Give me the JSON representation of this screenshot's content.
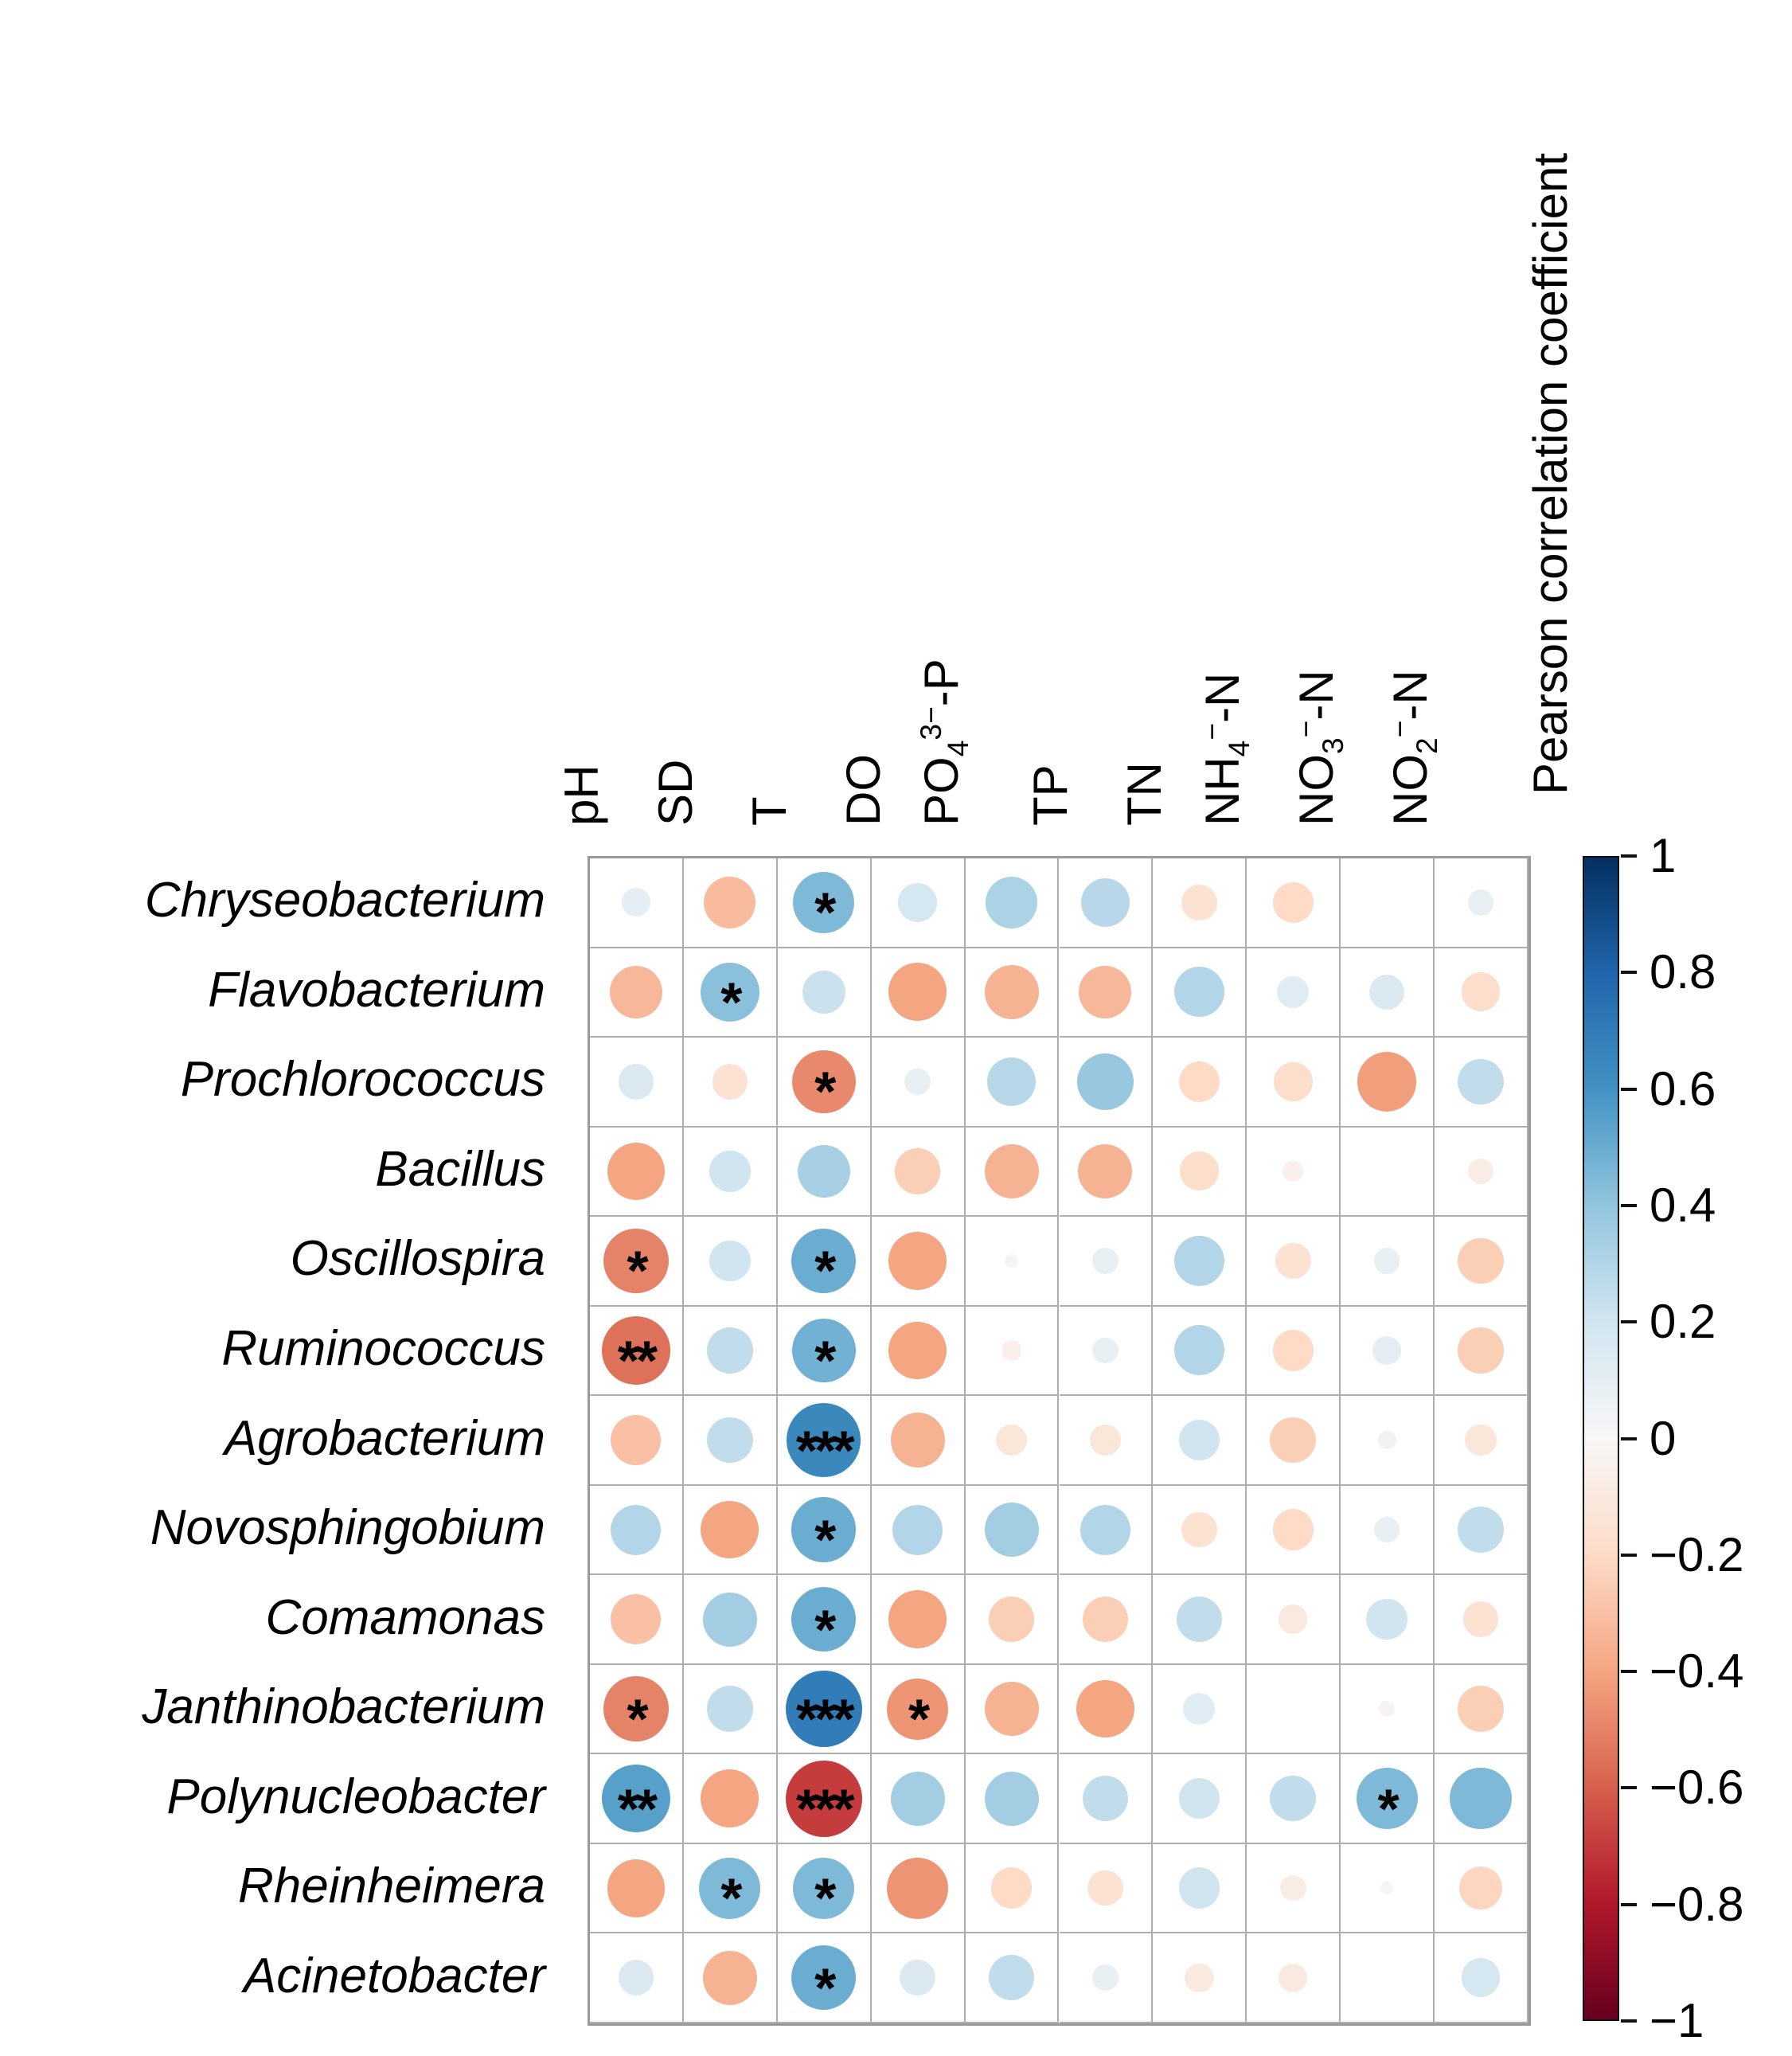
{
  "legend": {
    "title": "Pearson correlation coefficient",
    "ticks": [
      {
        "value": 1,
        "label": "1"
      },
      {
        "value": 0.8,
        "label": "0.8"
      },
      {
        "value": 0.6,
        "label": "0.6"
      },
      {
        "value": 0.4,
        "label": "0.4"
      },
      {
        "value": 0.2,
        "label": "0.2"
      },
      {
        "value": 0,
        "label": "0"
      },
      {
        "value": -0.2,
        "label": "−0.2"
      },
      {
        "value": -0.4,
        "label": "−0.4"
      },
      {
        "value": -0.6,
        "label": "−0.6"
      },
      {
        "value": -0.8,
        "label": "−0.8"
      },
      {
        "value": -1,
        "label": "−1"
      }
    ]
  },
  "colors": {
    "grid_line": "#aeaeae",
    "outer_border": "#9a9a9a",
    "colorbar_border": "#111111",
    "star_color": "#000000",
    "colormap_stops": [
      [
        -1.0,
        "#67001f"
      ],
      [
        -0.8,
        "#b2182b"
      ],
      [
        -0.6,
        "#d6604d"
      ],
      [
        -0.4,
        "#f4a582"
      ],
      [
        -0.2,
        "#fddbc7"
      ],
      [
        0.0,
        "#f7f7f7"
      ],
      [
        0.2,
        "#d1e5f0"
      ],
      [
        0.4,
        "#92c5de"
      ],
      [
        0.6,
        "#4393c3"
      ],
      [
        0.8,
        "#2166ac"
      ],
      [
        1.0,
        "#053061"
      ]
    ]
  },
  "chart_data": {
    "type": "heatmap",
    "subtype": "correlation-bubble-matrix",
    "legend_title": "Pearson correlation coefficient",
    "value_range": [
      -1,
      1
    ],
    "grid": true,
    "legend_position": "right",
    "columns": [
      {
        "label": "pH",
        "label_html": "pH"
      },
      {
        "label": "SD",
        "label_html": "SD"
      },
      {
        "label": "T",
        "label_html": "T"
      },
      {
        "label": "DO",
        "label_html": "DO"
      },
      {
        "label": "PO43−-P",
        "label_html": "PO<sub>4</sub><sup>3−</sup>-P"
      },
      {
        "label": "TP",
        "label_html": "TP"
      },
      {
        "label": "TN",
        "label_html": "TN"
      },
      {
        "label": "NH4−-N",
        "label_html": "NH<sub>4</sub><sup>−</sup>-N"
      },
      {
        "label": "NO3−-N",
        "label_html": "NO<sub>3</sub><sup>−</sup>-N"
      },
      {
        "label": "NO2−-N",
        "label_html": "NO<sub>2</sub><sup>−</sup>-N"
      }
    ],
    "rows": [
      "Chryseobacterium",
      "Flavobacterium",
      "Prochlorococcus",
      "Bacillus",
      "Oscillospira",
      "Ruminococcus",
      "Agrobacterium",
      "Novosphingobium",
      "Comamonas",
      "Janthinobacterium",
      "Polynucleobacter",
      "Rheinheimera",
      "Acinetobacter"
    ],
    "values": [
      [
        0.1,
        -0.32,
        0.45,
        0.18,
        0.32,
        0.28,
        -0.15,
        -0.2,
        0.0,
        0.08
      ],
      [
        -0.33,
        0.42,
        0.22,
        -0.4,
        -0.35,
        -0.33,
        0.3,
        0.12,
        0.15,
        -0.18
      ],
      [
        0.15,
        -0.15,
        -0.48,
        0.08,
        0.28,
        0.38,
        -0.2,
        -0.18,
        -0.42,
        0.25
      ],
      [
        -0.4,
        0.2,
        0.33,
        -0.25,
        -0.35,
        -0.35,
        -0.18,
        -0.05,
        0.0,
        -0.08
      ],
      [
        -0.5,
        0.2,
        0.5,
        -0.4,
        -0.02,
        0.08,
        0.3,
        -0.15,
        0.08,
        -0.25
      ],
      [
        -0.55,
        0.25,
        0.48,
        -0.4,
        -0.05,
        0.08,
        0.3,
        -0.2,
        0.1,
        -0.25
      ],
      [
        -0.3,
        0.25,
        0.65,
        -0.35,
        -0.12,
        -0.12,
        0.2,
        -0.25,
        0.04,
        -0.12
      ],
      [
        0.3,
        -0.4,
        0.5,
        0.3,
        0.35,
        0.3,
        -0.15,
        -0.2,
        0.08,
        0.25
      ],
      [
        -0.3,
        0.35,
        0.5,
        -0.4,
        -0.25,
        -0.25,
        0.25,
        -0.1,
        0.2,
        -0.15
      ],
      [
        -0.5,
        0.25,
        0.7,
        -0.45,
        -0.35,
        -0.4,
        0.12,
        0.0,
        -0.03,
        -0.25
      ],
      [
        0.55,
        -0.4,
        -0.7,
        0.35,
        0.35,
        0.25,
        0.2,
        0.25,
        0.45,
        0.45
      ],
      [
        -0.4,
        0.45,
        0.45,
        -0.45,
        -0.2,
        -0.15,
        0.2,
        -0.08,
        0.02,
        -0.22
      ],
      [
        0.15,
        -0.35,
        0.5,
        0.15,
        0.25,
        0.08,
        -0.1,
        -0.1,
        0.0,
        0.18
      ]
    ],
    "significance": [
      [
        "",
        "",
        "*",
        "",
        "",
        "",
        "",
        "",
        "",
        ""
      ],
      [
        "",
        "*",
        "",
        "",
        "",
        "",
        "",
        "",
        "",
        ""
      ],
      [
        "",
        "",
        "*",
        "",
        "",
        "",
        "",
        "",
        "",
        ""
      ],
      [
        "",
        "",
        "",
        "",
        "",
        "",
        "",
        "",
        "",
        ""
      ],
      [
        "*",
        "",
        "*",
        "",
        "",
        "",
        "",
        "",
        "",
        ""
      ],
      [
        "**",
        "",
        "*",
        "",
        "",
        "",
        "",
        "",
        "",
        ""
      ],
      [
        "",
        "",
        "***",
        "",
        "",
        "",
        "",
        "",
        "",
        ""
      ],
      [
        "",
        "",
        "*",
        "",
        "",
        "",
        "",
        "",
        "",
        ""
      ],
      [
        "",
        "",
        "*",
        "",
        "",
        "",
        "",
        "",
        "",
        ""
      ],
      [
        "*",
        "",
        "***",
        "*",
        "",
        "",
        "",
        "",
        "",
        ""
      ],
      [
        "**",
        "",
        "***",
        "",
        "",
        "",
        "",
        "",
        "*",
        ""
      ],
      [
        "",
        "*",
        "*",
        "",
        "",
        "",
        "",
        "",
        "",
        ""
      ],
      [
        "",
        "",
        "*",
        "",
        "",
        "",
        "",
        "",
        "",
        ""
      ]
    ]
  }
}
